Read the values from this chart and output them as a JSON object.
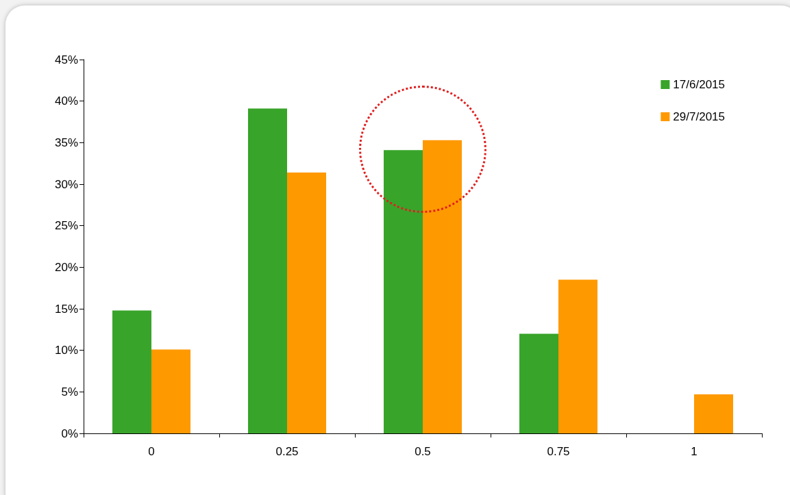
{
  "chart_data": {
    "type": "bar",
    "categories": [
      "0",
      "0.25",
      "0.5",
      "0.75",
      "1"
    ],
    "series": [
      {
        "name": "17/6/2015",
        "color": "#38a42a",
        "values": [
          14.8,
          39.1,
          34.1,
          12.0,
          0
        ]
      },
      {
        "name": "29/7/2015",
        "color": "#ff9900",
        "values": [
          10.1,
          31.4,
          35.3,
          18.5,
          4.7
        ]
      }
    ],
    "ylim": [
      0,
      45
    ],
    "yticks": [
      {
        "value": 0,
        "label": "0%"
      },
      {
        "value": 5,
        "label": "5%"
      },
      {
        "value": 10,
        "label": "10%"
      },
      {
        "value": 15,
        "label": "15%"
      },
      {
        "value": 20,
        "label": "20%"
      },
      {
        "value": 25,
        "label": "25%"
      },
      {
        "value": 30,
        "label": "30%"
      },
      {
        "value": 35,
        "label": "35%"
      },
      {
        "value": 40,
        "label": "40%"
      },
      {
        "value": 45,
        "label": "45%"
      }
    ],
    "grid": false,
    "legend": "top right"
  }
}
